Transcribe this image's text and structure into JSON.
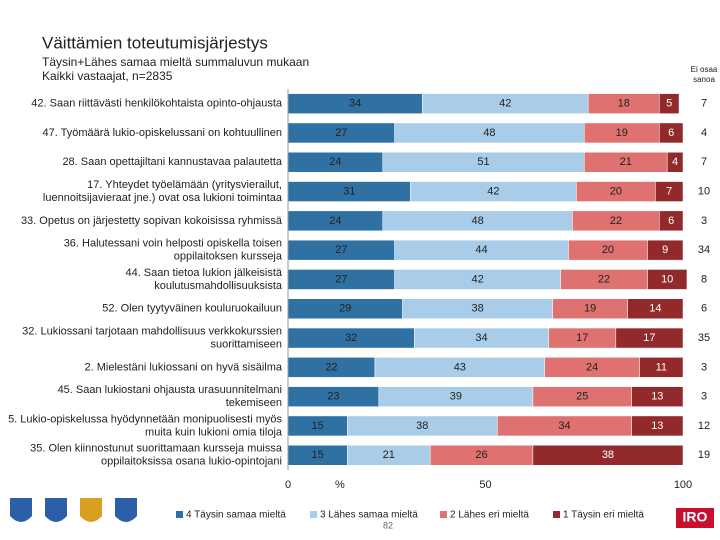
{
  "chart_data": {
    "type": "stacked-bar",
    "title": "Väittämien toteutumisjärjestys",
    "subtitle": [
      "Täysin+Lähes samaa mieltä summaluvun mukaan",
      "Kaikki vastaajat, n=2835"
    ],
    "categories": [
      [
        "42. Saan riittävästi henkilökohtaista opinto-ohjausta"
      ],
      [
        "47. Työmäärä lukio-opiskelussani on kohtuullinen"
      ],
      [
        "28. Saan opettajiltani kannustavaa palautetta"
      ],
      [
        "17. Yhteydet työelämään (yritysvierailut,",
        "luennoitsijavieraat jne.) ovat osa lukioni toimintaa"
      ],
      [
        "33. Opetus on järjestetty sopivan kokoisissa ryhmissä"
      ],
      [
        "36. Halutessani voin helposti opiskella toisen",
        "oppilaitoksen kursseja"
      ],
      [
        "44. Saan tietoa lukion jälkeisistä",
        "koulutusmahdollisuuksista"
      ],
      [
        "52. Olen tyytyväinen kouluruokailuun"
      ],
      [
        "32. Lukiossani tarjotaan mahdollisuus verkkokurssien",
        "suorittamiseen"
      ],
      [
        "2. Mielestäni lukiossani on hyvä sisäilma"
      ],
      [
        "45. Saan lukiostani ohjausta urasuunnitelmani",
        "tekemiseen"
      ],
      [
        "5. Lukio-opiskelussa hyödynnetään monipuolisesti myös",
        "muita kuin lukioni omia tiloja"
      ],
      [
        "35. Olen kiinnostunut suorittamaan kursseja muissa",
        "oppilaitoksissa osana lukio-opintojani"
      ]
    ],
    "series": [
      {
        "name": "4 Täysin samaa mieltä",
        "color": "#2f71a3",
        "values": [
          34,
          27,
          24,
          31,
          24,
          27,
          27,
          29,
          32,
          22,
          23,
          15,
          15
        ]
      },
      {
        "name": "3 Lähes samaa mieltä",
        "color": "#a9cde8",
        "values": [
          42,
          48,
          51,
          42,
          48,
          44,
          42,
          38,
          34,
          43,
          39,
          38,
          21
        ]
      },
      {
        "name": "2 Lähes eri mieltä",
        "color": "#df7270",
        "values": [
          18,
          19,
          21,
          20,
          22,
          20,
          22,
          19,
          17,
          24,
          25,
          34,
          26
        ]
      },
      {
        "name": "1 Täysin eri mieltä",
        "color": "#922a2c",
        "values": [
          5,
          6,
          4,
          7,
          6,
          9,
          10,
          14,
          17,
          11,
          13,
          13,
          38
        ]
      }
    ],
    "no_answer": {
      "name": [
        "Ei osaa",
        "sanoa"
      ],
      "values": [
        7,
        4,
        7,
        10,
        3,
        34,
        8,
        6,
        35,
        3,
        3,
        12,
        19
      ]
    },
    "xlim": [
      0,
      100
    ],
    "xticks": [
      0,
      50,
      100
    ],
    "xlabel": "%",
    "page_number": "82",
    "logo_text": "IRO"
  }
}
